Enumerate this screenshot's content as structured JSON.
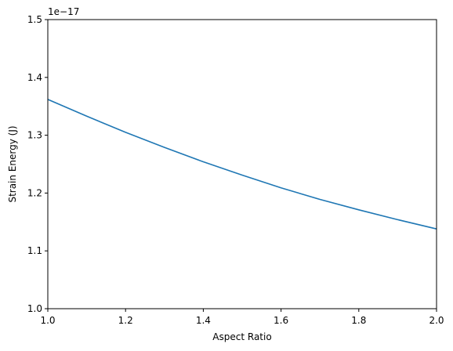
{
  "chart_data": {
    "type": "line",
    "title": "",
    "xlabel": "Aspect Ratio",
    "ylabel": "Strain Energy (J)",
    "y_offset_label": "1e−17",
    "xlim": [
      1.0,
      2.0
    ],
    "ylim": [
      1.0,
      1.5
    ],
    "x_ticks": [
      1.0,
      1.2,
      1.4,
      1.6,
      1.8,
      2.0
    ],
    "x_tick_labels": [
      "1.0",
      "1.2",
      "1.4",
      "1.6",
      "1.8",
      "2.0"
    ],
    "y_ticks": [
      1.0,
      1.1,
      1.2,
      1.3,
      1.4,
      1.5
    ],
    "y_tick_labels": [
      "1.0",
      "1.1",
      "1.2",
      "1.3",
      "1.4",
      "1.5"
    ],
    "grid": false,
    "series": [
      {
        "color": "#1f77b4",
        "x": [
          1.0,
          1.1,
          1.2,
          1.3,
          1.4,
          1.5,
          1.6,
          1.7,
          1.8,
          1.9,
          2.0
        ],
        "y": [
          1.362,
          1.333,
          1.305,
          1.279,
          1.254,
          1.231,
          1.209,
          1.189,
          1.171,
          1.154,
          1.138
        ]
      }
    ]
  }
}
